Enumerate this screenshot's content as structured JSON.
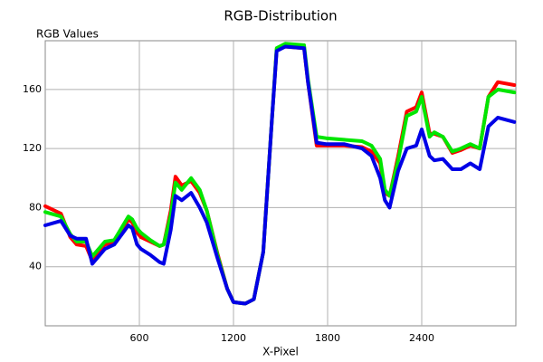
{
  "chart_data": {
    "type": "line",
    "title": "RGB-Distribution",
    "y_label": "RGB Values",
    "x_label": "X-Pixel",
    "x": [
      0,
      100,
      160,
      200,
      260,
      300,
      380,
      440,
      530,
      555,
      585,
      610,
      670,
      730,
      755,
      800,
      830,
      870,
      930,
      985,
      1030,
      1100,
      1160,
      1200,
      1275,
      1330,
      1390,
      1445,
      1475,
      1530,
      1650,
      1675,
      1730,
      1790,
      1905,
      2020,
      2080,
      2135,
      2165,
      2195,
      2250,
      2305,
      2365,
      2400,
      2450,
      2480,
      2535,
      2595,
      2650,
      2710,
      2770,
      2825,
      2885,
      2990
    ],
    "series": [
      {
        "name": "R",
        "color": "#ff0000",
        "values": [
          81,
          76,
          60,
          55,
          54,
          44,
          55,
          56,
          72,
          70,
          63,
          60,
          57,
          54,
          55,
          78,
          101,
          95,
          98,
          90,
          78,
          48,
          25,
          16,
          15,
          18,
          50,
          140,
          187,
          189,
          188,
          165,
          122,
          122,
          122,
          121,
          118,
          110,
          90,
          88,
          115,
          145,
          148,
          158,
          130,
          130,
          128,
          117,
          119,
          122,
          120,
          155,
          165,
          163
        ]
      },
      {
        "name": "G",
        "color": "#00e600",
        "values": [
          77,
          74,
          62,
          57,
          57,
          47,
          57,
          58,
          74,
          72,
          66,
          63,
          58,
          54,
          55,
          75,
          97,
          92,
          100,
          92,
          78,
          47,
          25,
          16,
          15,
          18,
          50,
          140,
          188,
          191,
          190,
          167,
          128,
          127,
          126,
          125,
          122,
          113,
          92,
          88,
          112,
          142,
          145,
          155,
          128,
          131,
          128,
          118,
          120,
          123,
          120,
          155,
          160,
          158
        ]
      },
      {
        "name": "B",
        "color": "#0000e6",
        "values": [
          68,
          71,
          61,
          59,
          59,
          42,
          52,
          55,
          68,
          66,
          55,
          52,
          48,
          43,
          42,
          65,
          88,
          85,
          90,
          80,
          70,
          45,
          25,
          16,
          15,
          18,
          50,
          140,
          186,
          189,
          188,
          165,
          124,
          123,
          123,
          120,
          115,
          100,
          85,
          80,
          105,
          120,
          122,
          133,
          115,
          112,
          113,
          106,
          106,
          110,
          106,
          135,
          141,
          138
        ]
      }
    ],
    "xlim": [
      0,
      3000
    ],
    "ylim": [
      0,
      193
    ],
    "xticks": [
      600,
      1200,
      1800,
      2400
    ],
    "yticks": [
      40,
      80,
      120,
      160
    ],
    "grid": true
  }
}
